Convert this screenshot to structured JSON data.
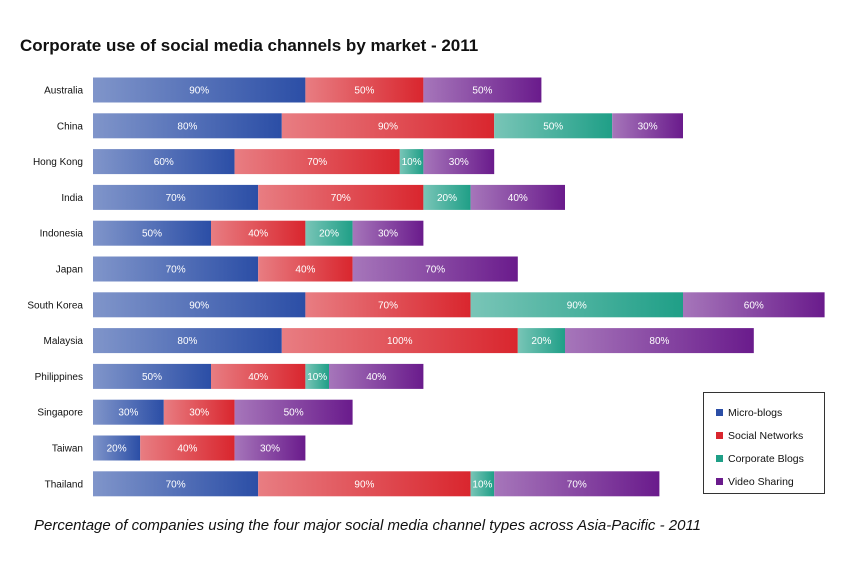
{
  "chart_data": {
    "type": "bar",
    "orientation": "horizontal",
    "stacked": true,
    "title": "Corporate use of social media channels by market - 2011",
    "caption": "Percentage of companies using the four major social media channel types across Asia-Pacific - 2011",
    "xlabel": "",
    "ylabel": "",
    "categories": [
      "Australia",
      "China",
      "Hong Kong",
      "India",
      "Indonesia",
      "Japan",
      "South Korea",
      "Malaysia",
      "Philippines",
      "Singapore",
      "Taiwan",
      "Thailand"
    ],
    "series": [
      {
        "name": "Micro-blogs",
        "color": "#2b4ea6",
        "values": [
          90,
          80,
          60,
          70,
          50,
          70,
          90,
          80,
          50,
          30,
          20,
          70
        ]
      },
      {
        "name": "Social Networks",
        "color": "#d9262e",
        "values": [
          50,
          90,
          70,
          70,
          40,
          40,
          70,
          100,
          40,
          30,
          40,
          90
        ]
      },
      {
        "name": "Corporate Blogs",
        "color": "#1f9f87",
        "values": [
          0,
          50,
          10,
          20,
          20,
          0,
          90,
          20,
          10,
          0,
          0,
          10
        ]
      },
      {
        "name": "Video Sharing",
        "color": "#6a1b8c",
        "values": [
          50,
          30,
          30,
          40,
          30,
          70,
          60,
          80,
          40,
          50,
          30,
          70
        ]
      }
    ],
    "value_suffix": "%",
    "grid": false,
    "legend_position": "bottom-right"
  }
}
